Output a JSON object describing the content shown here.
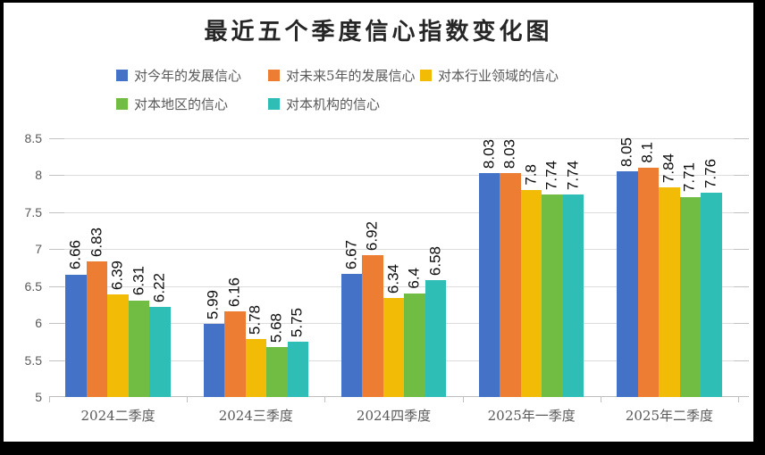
{
  "chart_data": {
    "type": "bar",
    "title": "最近五个季度信心指数变化图",
    "categories": [
      "2024二季度",
      "2024三季度",
      "2024四季度",
      "2025年一季度",
      "2025年二季度"
    ],
    "series": [
      {
        "name": "对今年的发展信心",
        "color": "#4472C7",
        "values": [
          6.66,
          5.99,
          6.67,
          8.03,
          8.05
        ]
      },
      {
        "name": "对未来5年的发展信心",
        "color": "#EC7D33",
        "values": [
          6.83,
          6.16,
          6.92,
          8.03,
          8.1
        ]
      },
      {
        "name": "对本行业领域的信心",
        "color": "#F2BC06",
        "values": [
          6.39,
          5.78,
          6.34,
          7.8,
          7.84
        ]
      },
      {
        "name": "对本地区的信心",
        "color": "#71BD43",
        "values": [
          6.31,
          5.68,
          6.4,
          7.74,
          7.71
        ]
      },
      {
        "name": "对本机构的信心",
        "color": "#2FBEB6",
        "values": [
          6.22,
          5.75,
          6.58,
          7.74,
          7.76
        ]
      }
    ],
    "ylim": [
      5,
      8.5
    ],
    "yticks": [
      8.5,
      8,
      7.5,
      7,
      6.5,
      6,
      5.5,
      5
    ],
    "xlabel": "",
    "ylabel": "",
    "grid": true,
    "legend_position": "top",
    "value_labels": "rotated-90-above-bars",
    "colors": {
      "axis_text": "#595959",
      "value_label_text": "#0d0d0d",
      "title_text": "#262626",
      "gridline": "#DCDCDC",
      "plot_background": "#ffffff",
      "outer_border": "#000000"
    }
  }
}
